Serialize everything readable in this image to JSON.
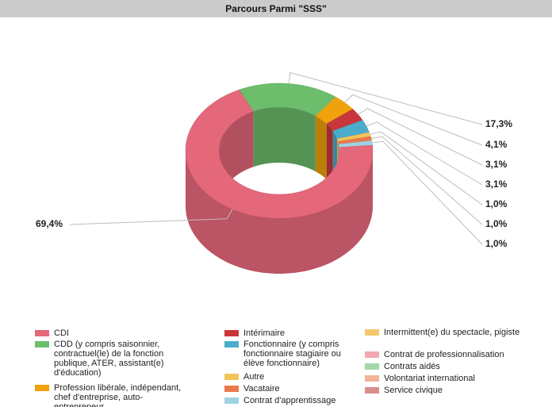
{
  "chart_data": {
    "type": "donut3d",
    "title": "Parcours Parmi \"SSS\"",
    "categories": [
      "CDI",
      "CDD (y compris saisonnier, contractuel(le) de la fonction publique, ATER, assistant(e) d'éducation)",
      "Profession libérale, indépendant, chef d'entreprise, auto-entrepreneur",
      "Intérimaire",
      "Fonctionnaire (y compris fonctionnaire stagiaire ou élève fonctionnaire)",
      "Autre",
      "Vacataire",
      "Contrat d'apprentissage",
      "Intermittent(e) du spectacle, pigiste",
      "Contrat de professionnalisation",
      "Contrats aidés",
      "Volontariat international",
      "Service civique"
    ],
    "values": [
      69.4,
      17.3,
      4.1,
      3.1,
      3.1,
      1.0,
      1.0,
      1.0,
      0,
      0,
      0,
      0,
      0
    ],
    "value_labels": [
      "69,4%",
      "17,3%",
      "4,1%",
      "3,1%",
      "3,1%",
      "1,0%",
      "1,0%",
      "1,0%",
      null,
      null,
      null,
      null,
      null
    ],
    "colors": [
      "#e4677a",
      "#6cbd6c",
      "#f0a20c",
      "#c9363a",
      "#4baccb",
      "#f2c45a",
      "#e9794c",
      "#9fd3e3",
      "#f3c96c",
      "#f2a7b3",
      "#a4d8aa",
      "#f1b596",
      "#d98d8d"
    ]
  }
}
